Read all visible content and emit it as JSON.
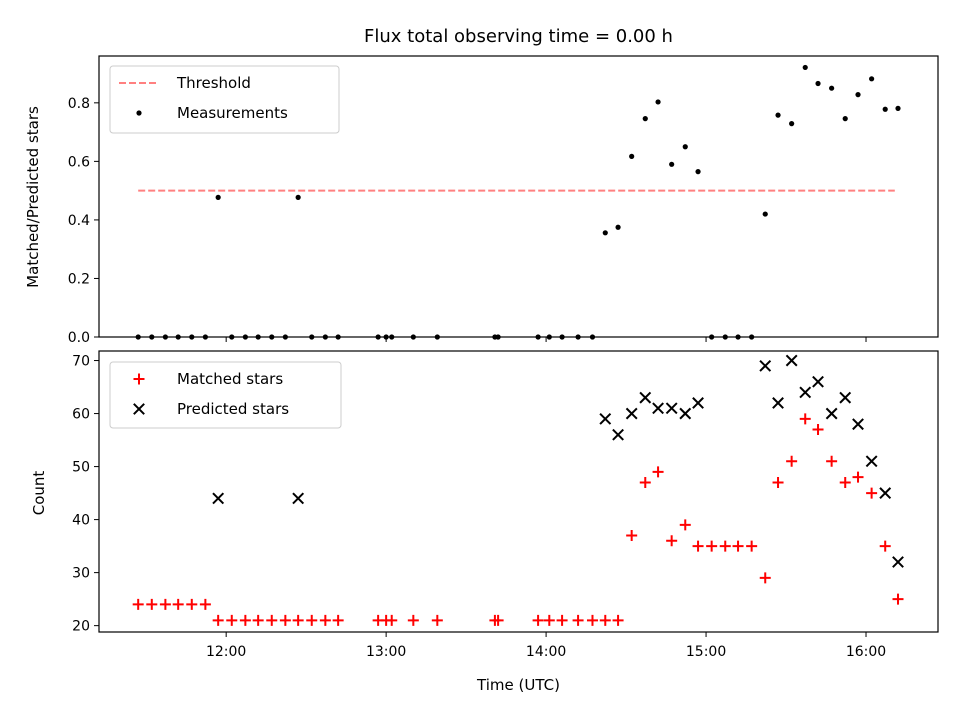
{
  "chart_data": [
    {
      "type": "scatter",
      "title": "Flux total observing time = 0.00 h",
      "xlabel": "",
      "ylabel": "Matched/Predicted stars",
      "ylim": [
        0,
        0.96
      ],
      "xlim": [
        11.205,
        16.45
      ],
      "yticks": [
        0.0,
        0.2,
        0.4,
        0.6,
        0.8
      ],
      "ytick_labels": [
        "0.0",
        "0.2",
        "0.4",
        "0.6",
        "0.8"
      ],
      "xticks": [
        12,
        13,
        14,
        15,
        16
      ],
      "legend_position": "top-left",
      "grid": false,
      "threshold": {
        "name": "Threshold",
        "value": 0.5,
        "x_range": [
          11.45,
          16.18
        ],
        "color": "#ff8080",
        "style": "dashed"
      },
      "series": [
        {
          "name": "Measurements",
          "color": "#000000",
          "marker": "dot",
          "x": [
            11.45,
            11.535,
            11.62,
            11.7,
            11.785,
            11.87,
            11.95,
            12.035,
            12.12,
            12.2,
            12.285,
            12.37,
            12.45,
            12.535,
            12.62,
            12.7,
            12.95,
            13.0,
            13.035,
            13.17,
            13.32,
            13.68,
            13.7,
            13.95,
            14.02,
            14.1,
            14.2,
            14.29,
            14.37,
            14.45,
            14.535,
            14.62,
            14.7,
            14.785,
            14.87,
            14.95,
            15.035,
            15.12,
            15.2,
            15.285,
            15.37,
            15.45,
            15.535,
            15.62,
            15.7,
            15.785,
            15.87,
            15.95,
            16.035,
            16.12,
            16.2
          ],
          "y": [
            0,
            0,
            0,
            0,
            0,
            0,
            0.477,
            0,
            0,
            0,
            0,
            0,
            0.477,
            0,
            0,
            0,
            0,
            0,
            0,
            0,
            0,
            0,
            0,
            0,
            0,
            0,
            0,
            0,
            0.356,
            0.375,
            0.617,
            0.746,
            0.803,
            0.59,
            0.65,
            0.565,
            0,
            0,
            0,
            0,
            0.42,
            0.758,
            0.729,
            0.921,
            0.866,
            0.85,
            0.746,
            0.828,
            0.882,
            0.778,
            0.781
          ]
        }
      ]
    },
    {
      "type": "scatter",
      "title": "",
      "xlabel": "Time (UTC)",
      "ylabel": "Count",
      "ylim": [
        18.8,
        71.8
      ],
      "xlim": [
        11.205,
        16.45
      ],
      "yticks": [
        20,
        30,
        40,
        50,
        60,
        70
      ],
      "ytick_labels": [
        "20",
        "30",
        "40",
        "50",
        "60",
        "70"
      ],
      "xticks": [
        12,
        13,
        14,
        15,
        16
      ],
      "xtick_labels": [
        "12:00",
        "13:00",
        "14:00",
        "15:00",
        "16:00"
      ],
      "legend_position": "top-left",
      "grid": false,
      "series": [
        {
          "name": "Matched stars",
          "color": "#ff0000",
          "marker": "plus",
          "x": [
            11.45,
            11.535,
            11.62,
            11.7,
            11.785,
            11.87,
            11.95,
            12.035,
            12.12,
            12.2,
            12.285,
            12.37,
            12.45,
            12.535,
            12.62,
            12.7,
            12.95,
            13.0,
            13.035,
            13.17,
            13.32,
            13.68,
            13.7,
            13.95,
            14.02,
            14.1,
            14.2,
            14.29,
            14.37,
            14.45,
            14.535,
            14.62,
            14.7,
            14.785,
            14.87,
            14.95,
            15.035,
            15.12,
            15.2,
            15.285,
            15.37,
            15.45,
            15.535,
            15.62,
            15.7,
            15.785,
            15.87,
            15.95,
            16.035,
            16.12,
            16.2
          ],
          "y": [
            24,
            24,
            24,
            24,
            24,
            24,
            21,
            21,
            21,
            21,
            21,
            21,
            21,
            21,
            21,
            21,
            21,
            21,
            21,
            21,
            21,
            21,
            21,
            21,
            21,
            21,
            21,
            21,
            21,
            21,
            37,
            47,
            49,
            36,
            39,
            35,
            35,
            35,
            35,
            35,
            29,
            47,
            51,
            59,
            57,
            51,
            47,
            48,
            45,
            35,
            25
          ]
        },
        {
          "name": "Predicted stars",
          "color": "#000000",
          "marker": "x",
          "x": [
            11.95,
            12.45,
            14.37,
            14.45,
            14.535,
            14.62,
            14.7,
            14.785,
            14.87,
            14.95,
            15.37,
            15.45,
            15.535,
            15.62,
            15.7,
            15.785,
            15.87,
            15.95,
            16.035,
            16.12,
            16.2
          ],
          "y": [
            44,
            44,
            59,
            56,
            60,
            63,
            61,
            61,
            60,
            62,
            69,
            62,
            70,
            64,
            66,
            60,
            63,
            58,
            51,
            45,
            32
          ]
        }
      ]
    }
  ]
}
